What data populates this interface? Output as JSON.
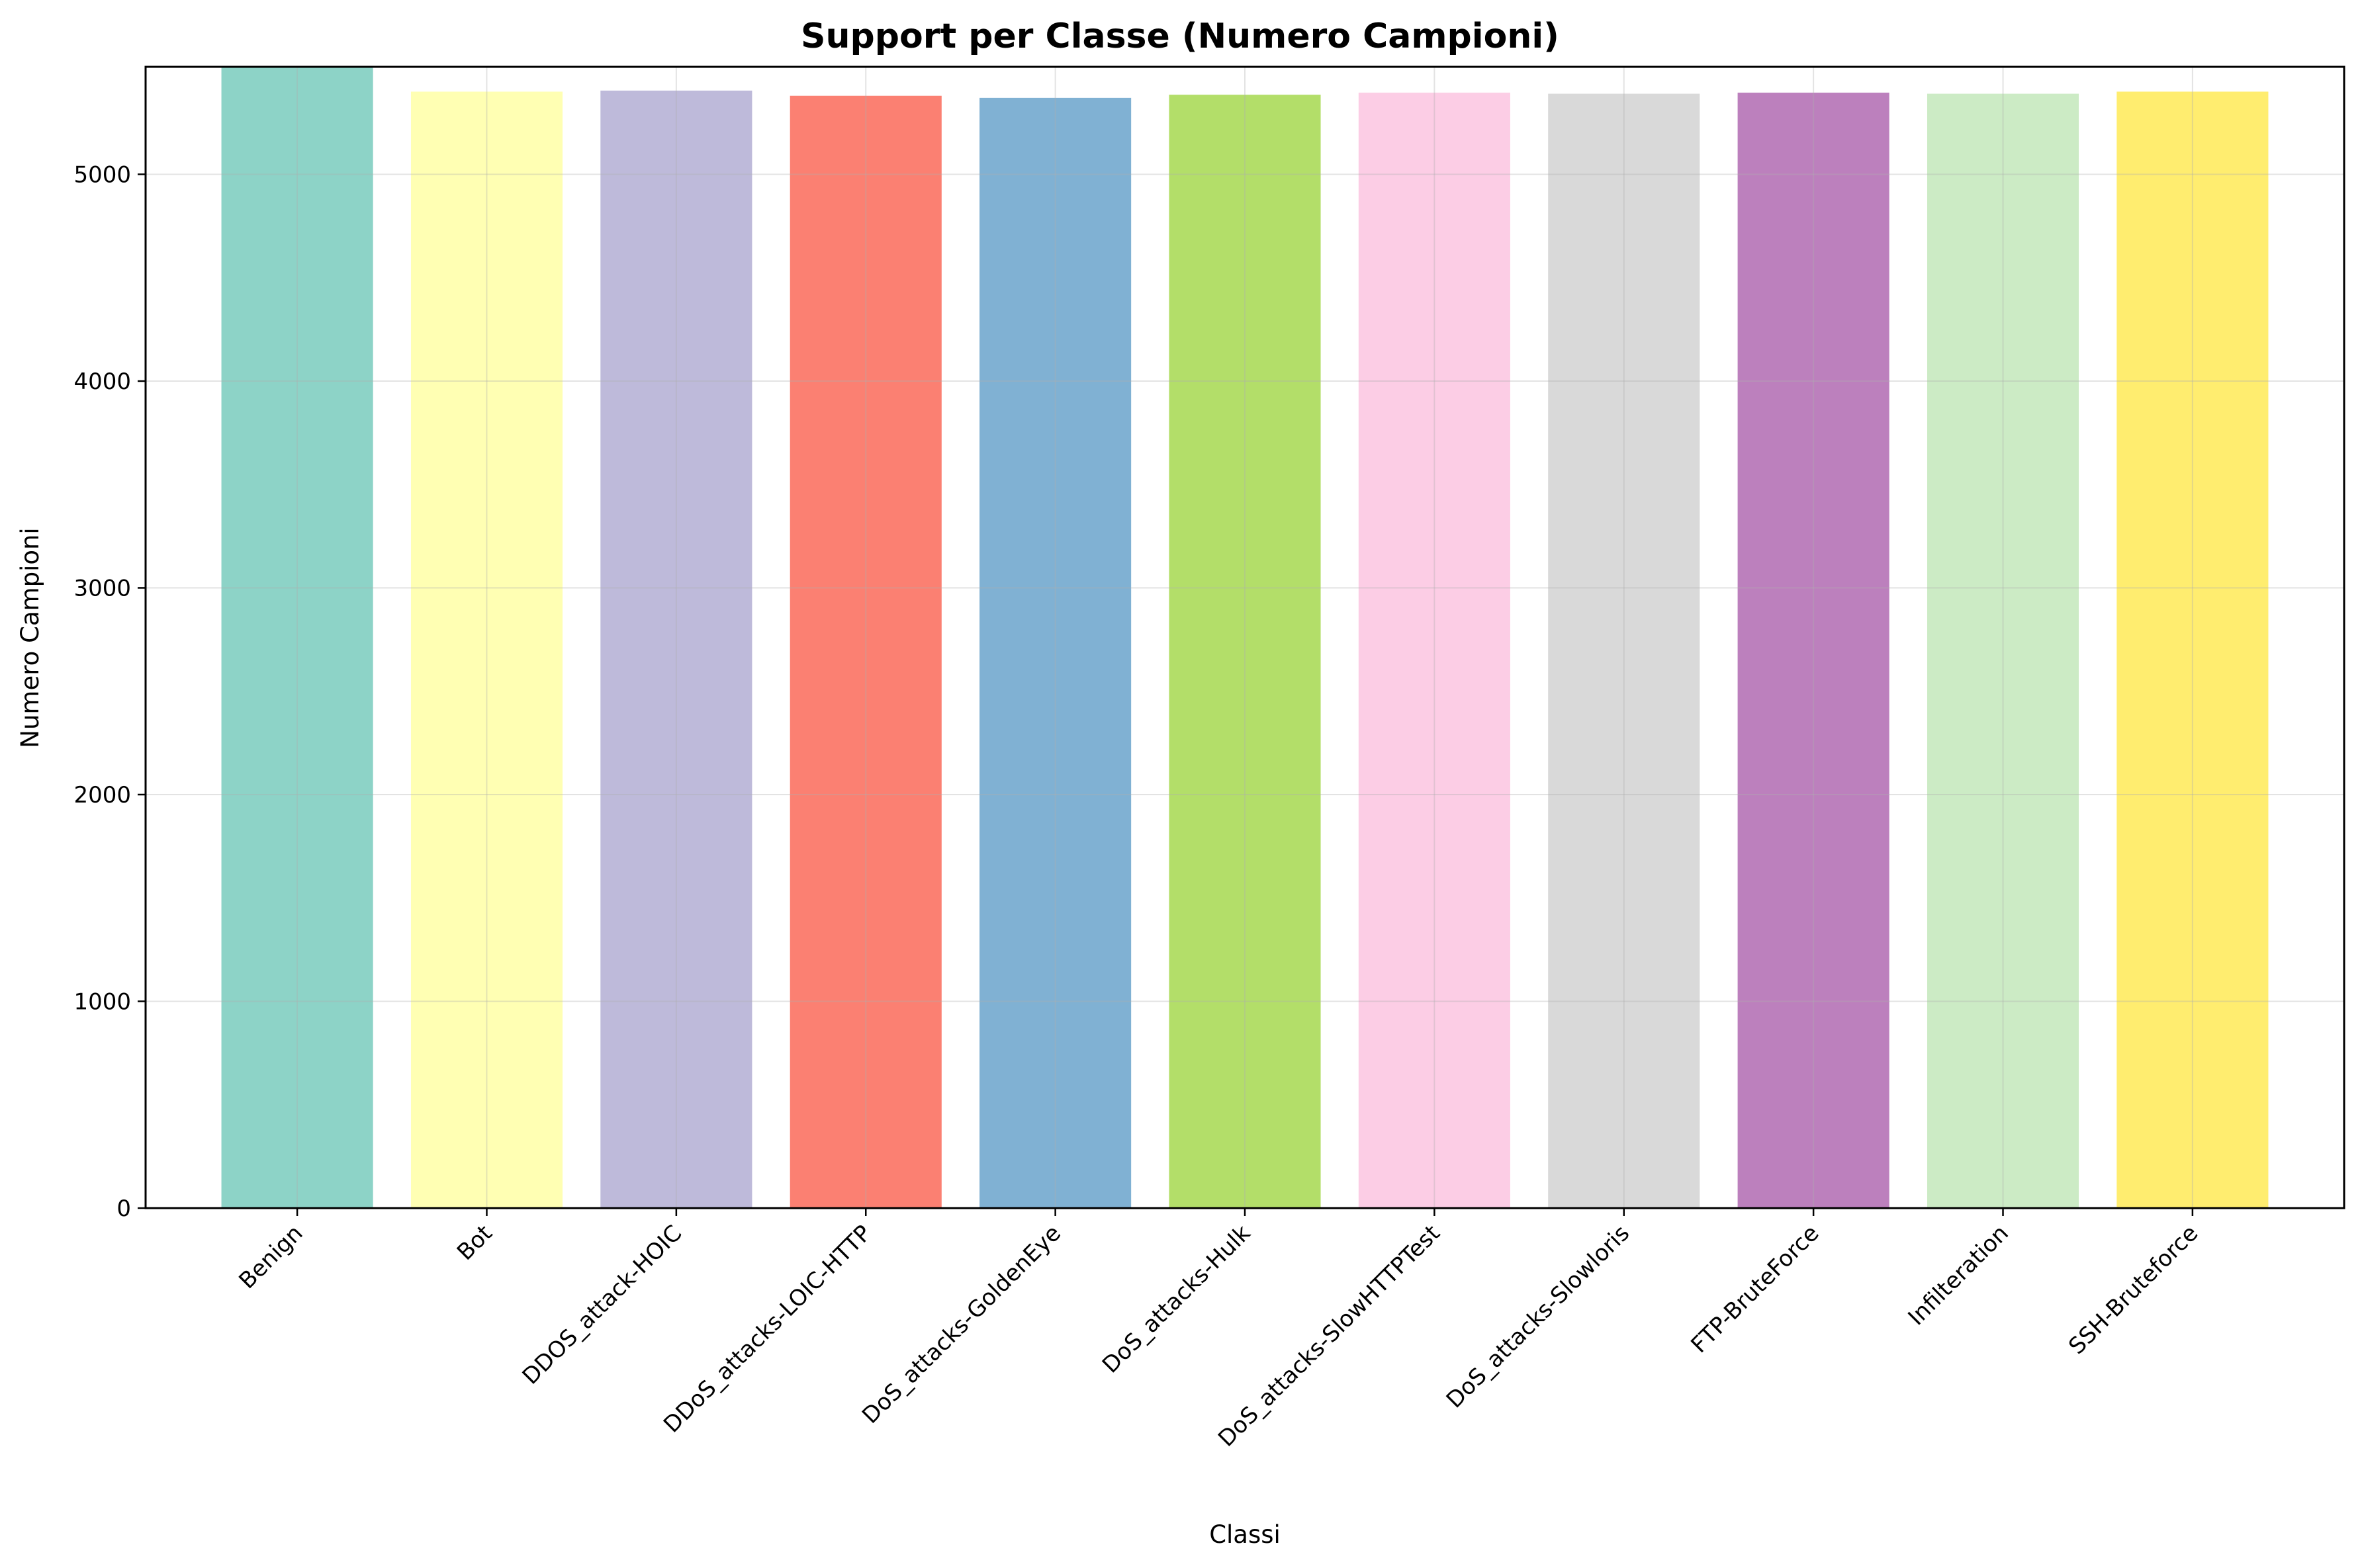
{
  "chart_data": {
    "type": "bar",
    "title": "Support per Classe (Numero Campioni)",
    "xlabel": "Classi",
    "ylabel": "Numero Campioni",
    "ylim": [
      0,
      5520
    ],
    "yticks": [
      0,
      1000,
      2000,
      3000,
      4000,
      5000
    ],
    "grid": true,
    "categories": [
      "Benign",
      "Bot",
      "DDOS_attack-HOIC",
      "DDoS_attacks-LOIC-HTTP",
      "DoS_attacks-GoldenEye",
      "DoS_attacks-Hulk",
      "DoS_attacks-SlowHTTPTest",
      "DoS_attacks-Slowloris",
      "FTP-BruteForce",
      "Infilteration",
      "SSH-Bruteforce"
    ],
    "values": [
      5520,
      5400,
      5405,
      5380,
      5370,
      5385,
      5395,
      5390,
      5395,
      5390,
      5400
    ],
    "colors": [
      "#8dd3c7",
      "#ffffb3",
      "#bebada",
      "#fb8072",
      "#80b1d3",
      "#b3de69",
      "#fccde5",
      "#d9d9d9",
      "#bc80bd",
      "#ccebc5",
      "#ffed6f"
    ]
  }
}
